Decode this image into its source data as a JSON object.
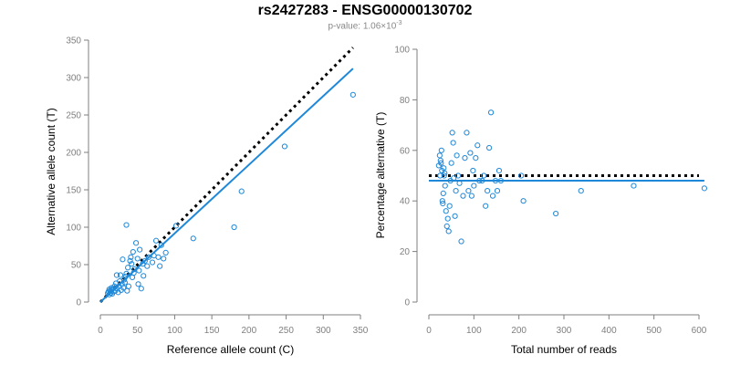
{
  "title": "rs2427283 - ENSG00000130702",
  "subtitle": {
    "prefix": "p-value: 1.06×10",
    "exponent": "-3"
  },
  "colors": {
    "points": "#1f88d8",
    "fit_line": "#1f88d8",
    "reference_line": "#000000",
    "axis": "#7f7f7f"
  },
  "chart_data": [
    {
      "type": "scatter",
      "name": "left",
      "xlabel": "Reference allele count (C)",
      "ylabel": "Alternative allele count (T)",
      "xlim": [
        0,
        350
      ],
      "ylim": [
        0,
        350
      ],
      "xticks": [
        0,
        50,
        100,
        150,
        200,
        250,
        300,
        350
      ],
      "yticks": [
        0,
        50,
        100,
        150,
        200,
        250,
        300,
        350
      ],
      "points": [
        [
          10,
          12
        ],
        [
          11,
          14
        ],
        [
          12,
          10
        ],
        [
          12,
          17
        ],
        [
          13,
          15
        ],
        [
          14,
          12
        ],
        [
          15,
          16
        ],
        [
          15,
          19
        ],
        [
          16,
          11
        ],
        [
          17,
          18
        ],
        [
          18,
          14
        ],
        [
          19,
          21
        ],
        [
          20,
          15
        ],
        [
          21,
          25
        ],
        [
          22,
          18
        ],
        [
          22,
          36
        ],
        [
          24,
          13
        ],
        [
          25,
          21
        ],
        [
          26,
          28
        ],
        [
          27,
          36
        ],
        [
          28,
          16
        ],
        [
          29,
          24
        ],
        [
          30,
          57
        ],
        [
          31,
          19
        ],
        [
          32,
          30
        ],
        [
          33,
          26
        ],
        [
          34,
          34
        ],
        [
          35,
          38
        ],
        [
          35,
          103
        ],
        [
          36,
          15
        ],
        [
          37,
          46
        ],
        [
          38,
          21
        ],
        [
          40,
          55
        ],
        [
          41,
          60
        ],
        [
          42,
          51
        ],
        [
          43,
          33
        ],
        [
          44,
          67
        ],
        [
          45,
          39
        ],
        [
          46,
          44
        ],
        [
          48,
          79
        ],
        [
          50,
          58
        ],
        [
          51,
          24
        ],
        [
          52,
          42
        ],
        [
          53,
          70
        ],
        [
          55,
          18
        ],
        [
          57,
          51
        ],
        [
          58,
          35
        ],
        [
          60,
          55
        ],
        [
          63,
          48
        ],
        [
          65,
          60
        ],
        [
          70,
          53
        ],
        [
          72,
          62
        ],
        [
          75,
          82
        ],
        [
          78,
          60
        ],
        [
          80,
          48
        ],
        [
          82,
          76
        ],
        [
          85,
          58
        ],
        [
          88,
          66
        ],
        [
          102,
          102
        ],
        [
          125,
          85
        ],
        [
          180,
          100
        ],
        [
          190,
          148
        ],
        [
          248,
          208
        ],
        [
          340,
          277
        ]
      ],
      "reference_line": {
        "x": [
          0,
          340
        ],
        "y": [
          0,
          340
        ]
      },
      "fit_line": {
        "x": [
          0,
          340
        ],
        "y": [
          0,
          312
        ]
      }
    },
    {
      "type": "scatter",
      "name": "right",
      "xlabel": "Total number of reads",
      "ylabel": "Percentage alternative (T)",
      "xlim": [
        0,
        600
      ],
      "ylim": [
        0,
        100
      ],
      "xticks": [
        0,
        100,
        200,
        300,
        400,
        500,
        600
      ],
      "yticks": [
        0,
        20,
        40,
        60,
        80,
        100
      ],
      "points": [
        [
          22,
          54
        ],
        [
          24,
          58
        ],
        [
          25,
          50
        ],
        [
          26,
          56
        ],
        [
          27,
          55
        ],
        [
          28,
          60
        ],
        [
          29,
          52
        ],
        [
          30,
          40
        ],
        [
          31,
          39
        ],
        [
          32,
          43
        ],
        [
          33,
          53
        ],
        [
          34,
          50
        ],
        [
          35,
          51
        ],
        [
          36,
          46
        ],
        [
          38,
          36
        ],
        [
          40,
          30
        ],
        [
          42,
          33
        ],
        [
          44,
          28
        ],
        [
          46,
          38
        ],
        [
          48,
          48
        ],
        [
          50,
          55
        ],
        [
          52,
          67
        ],
        [
          54,
          63
        ],
        [
          55,
          49
        ],
        [
          58,
          34
        ],
        [
          60,
          44
        ],
        [
          62,
          58
        ],
        [
          65,
          50
        ],
        [
          68,
          47
        ],
        [
          72,
          24
        ],
        [
          76,
          42
        ],
        [
          80,
          57
        ],
        [
          84,
          67
        ],
        [
          88,
          44
        ],
        [
          92,
          59
        ],
        [
          95,
          42
        ],
        [
          98,
          52
        ],
        [
          100,
          46
        ],
        [
          104,
          57
        ],
        [
          108,
          62
        ],
        [
          112,
          48
        ],
        [
          118,
          48
        ],
        [
          122,
          50
        ],
        [
          126,
          38
        ],
        [
          130,
          44
        ],
        [
          134,
          61
        ],
        [
          138,
          75
        ],
        [
          142,
          42
        ],
        [
          148,
          48
        ],
        [
          152,
          44
        ],
        [
          156,
          52
        ],
        [
          160,
          48
        ],
        [
          205,
          50
        ],
        [
          210,
          40
        ],
        [
          282,
          35
        ],
        [
          338,
          44
        ],
        [
          455,
          46
        ],
        [
          612,
          45
        ]
      ],
      "reference_line": {
        "x": [
          0,
          600
        ],
        "y": [
          50,
          50
        ]
      },
      "fit_line": {
        "x": [
          0,
          612
        ],
        "y": [
          48,
          48
        ]
      }
    }
  ]
}
